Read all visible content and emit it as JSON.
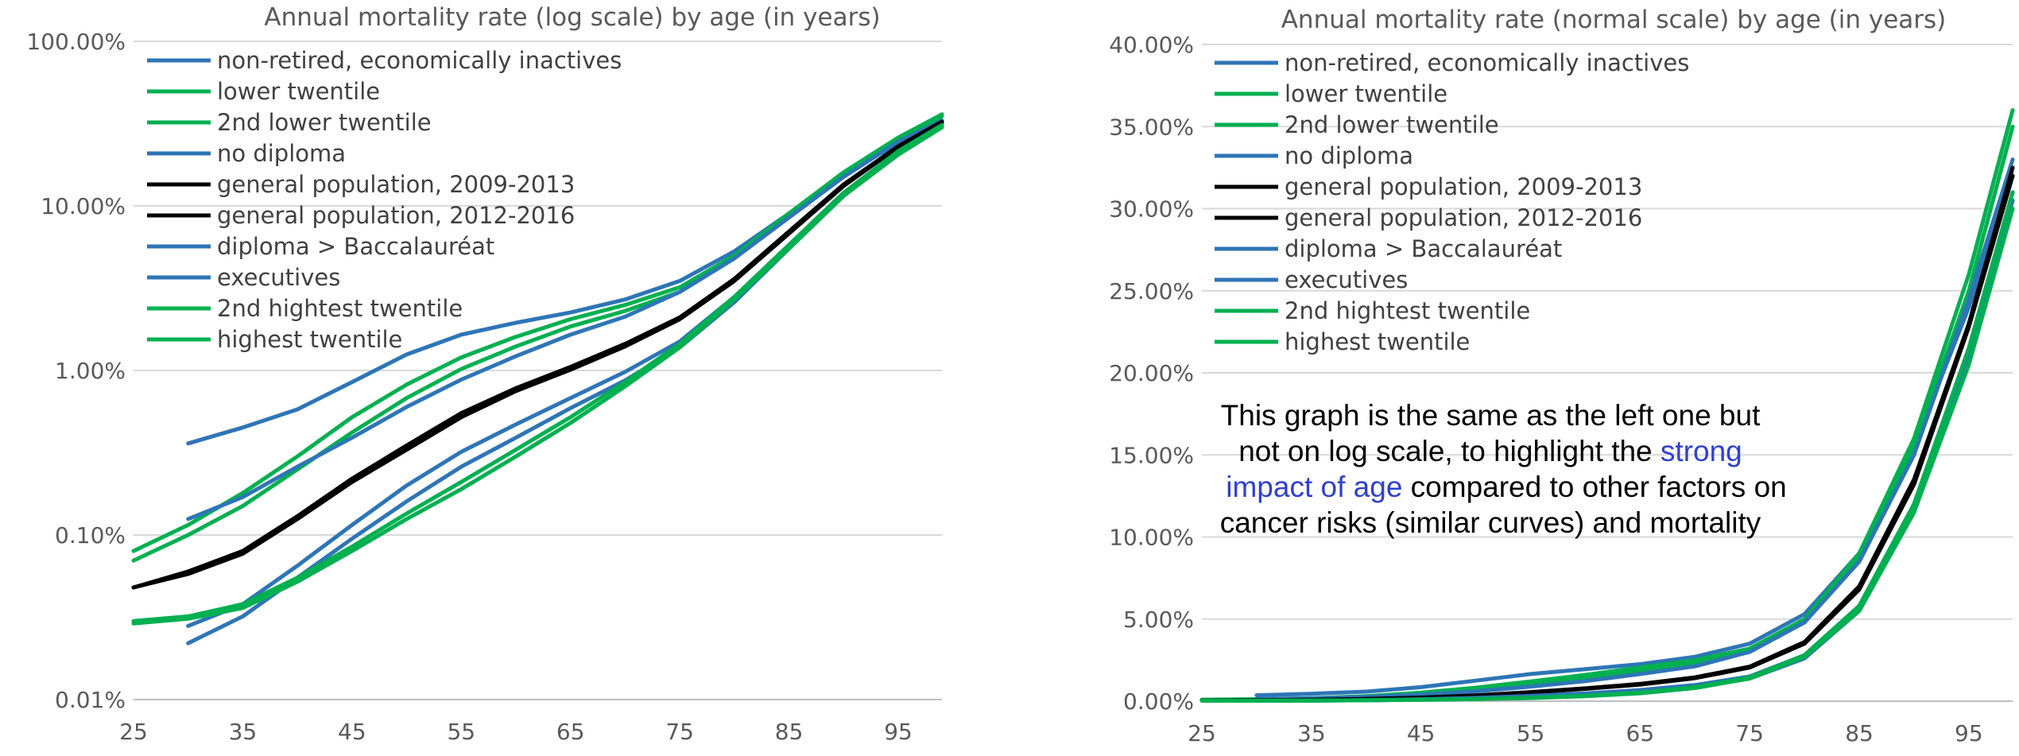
{
  "chart_data": [
    {
      "type": "line",
      "title": "Annual mortality rate (log scale) by age (in years)",
      "yscale": "log",
      "ylim": [
        0.0001,
        1
      ],
      "xlim": [
        25,
        99
      ],
      "xticks": [
        25,
        35,
        45,
        55,
        65,
        75,
        85,
        95
      ],
      "yticks": [
        "0.01%",
        "0.10%",
        "1.00%",
        "10.00%",
        "100.00%"
      ],
      "legend_position": "top-left",
      "grid": true,
      "series": [
        {
          "name": "non-retired, economically inactives",
          "color": "#2e75b6",
          "x": [
            30,
            35,
            40,
            45,
            50,
            55,
            60,
            65,
            70,
            75,
            80,
            85,
            90,
            95,
            99
          ],
          "y": [
            0.0036,
            0.0045,
            0.0058,
            0.0085,
            0.0125,
            0.0165,
            0.0195,
            0.0225,
            0.027,
            0.035,
            0.053,
            0.09,
            0.155,
            0.24,
            0.32
          ]
        },
        {
          "name": "lower twentile",
          "color": "#00b050",
          "x": [
            25,
            30,
            35,
            40,
            45,
            50,
            55,
            60,
            65,
            70,
            75,
            80,
            85,
            90,
            95,
            99
          ],
          "y": [
            0.0008,
            0.00115,
            0.0018,
            0.003,
            0.0052,
            0.0082,
            0.012,
            0.016,
            0.0205,
            0.025,
            0.032,
            0.05,
            0.09,
            0.16,
            0.26,
            0.36
          ]
        },
        {
          "name": "2nd lower twentile",
          "color": "#00b050",
          "x": [
            25,
            30,
            35,
            40,
            45,
            50,
            55,
            60,
            65,
            70,
            75,
            80,
            85,
            90,
            95,
            99
          ],
          "y": [
            0.0007,
            0.001,
            0.0015,
            0.0025,
            0.0042,
            0.0068,
            0.0102,
            0.014,
            0.0185,
            0.023,
            0.03,
            0.048,
            0.087,
            0.155,
            0.25,
            0.35
          ]
        },
        {
          "name": "no diploma",
          "color": "#2e75b6",
          "x": [
            30,
            35,
            40,
            45,
            50,
            55,
            60,
            65,
            70,
            75,
            80,
            85,
            90,
            95,
            99
          ],
          "y": [
            0.00125,
            0.0017,
            0.0026,
            0.0039,
            0.006,
            0.0088,
            0.0122,
            0.0165,
            0.0212,
            0.03,
            0.048,
            0.085,
            0.15,
            0.245,
            0.33
          ]
        },
        {
          "name": "general population, 2009-2013",
          "color": "#000000",
          "x": [
            25,
            30,
            35,
            40,
            45,
            50,
            55,
            60,
            65,
            70,
            75,
            80,
            85,
            90,
            95,
            99
          ],
          "y": [
            0.00048,
            0.0006,
            0.0008,
            0.0013,
            0.0022,
            0.0035,
            0.0055,
            0.0078,
            0.0105,
            0.0145,
            0.021,
            0.036,
            0.07,
            0.135,
            0.23,
            0.325
          ]
        },
        {
          "name": "general population, 2012-2016",
          "color": "#000000",
          "x": [
            25,
            30,
            35,
            40,
            45,
            50,
            55,
            60,
            65,
            70,
            75,
            80,
            85,
            90,
            95,
            99
          ],
          "y": [
            0.00048,
            0.00058,
            0.00077,
            0.00125,
            0.0021,
            0.0033,
            0.0052,
            0.0075,
            0.0101,
            0.014,
            0.0205,
            0.035,
            0.068,
            0.132,
            0.228,
            0.32
          ]
        },
        {
          "name": "diploma > Baccalauréat",
          "color": "#2e75b6",
          "x": [
            30,
            35,
            40,
            45,
            50,
            55,
            60,
            65,
            70,
            75,
            80,
            85,
            90,
            95,
            99
          ],
          "y": [
            0.00028,
            0.00038,
            0.00065,
            0.00115,
            0.002,
            0.0032,
            0.0047,
            0.0068,
            0.0098,
            0.015,
            0.028,
            0.058,
            0.12,
            0.215,
            0.31
          ]
        },
        {
          "name": "executives",
          "color": "#2e75b6",
          "x": [
            30,
            35,
            40,
            45,
            50,
            55,
            60,
            65,
            70,
            75,
            80,
            85,
            90,
            95,
            99
          ],
          "y": [
            0.00022,
            0.00032,
            0.00055,
            0.00095,
            0.0016,
            0.0026,
            0.0039,
            0.0059,
            0.0087,
            0.0138,
            0.026,
            0.055,
            0.115,
            0.21,
            0.305
          ]
        },
        {
          "name": "2nd hightest twentile",
          "color": "#00b050",
          "x": [
            25,
            30,
            35,
            40,
            45,
            50,
            55,
            60,
            65,
            70,
            75,
            80,
            85,
            90,
            95,
            99
          ],
          "y": [
            0.0003,
            0.00032,
            0.00038,
            0.00055,
            0.00085,
            0.00135,
            0.0021,
            0.0033,
            0.0052,
            0.0085,
            0.0145,
            0.028,
            0.058,
            0.12,
            0.215,
            0.31
          ]
        },
        {
          "name": "highest twentile",
          "color": "#00b050",
          "x": [
            25,
            30,
            35,
            40,
            45,
            50,
            55,
            60,
            65,
            70,
            75,
            80,
            85,
            90,
            95,
            99
          ],
          "y": [
            0.00029,
            0.00031,
            0.00036,
            0.00052,
            0.0008,
            0.00125,
            0.0019,
            0.003,
            0.0048,
            0.008,
            0.0138,
            0.027,
            0.055,
            0.115,
            0.205,
            0.3
          ]
        }
      ]
    },
    {
      "type": "line",
      "title": "Annual mortality rate (normal scale) by age (in years)",
      "yscale": "linear",
      "ylim": [
        0,
        0.4
      ],
      "xlim": [
        25,
        99
      ],
      "xticks": [
        25,
        35,
        45,
        55,
        65,
        75,
        85,
        95
      ],
      "yticks": [
        "0.00%",
        "5.00%",
        "10.00%",
        "15.00%",
        "20.00%",
        "25.00%",
        "30.00%",
        "35.00%",
        "40.00%"
      ],
      "legend_position": "top-left",
      "grid": true,
      "annotation": {
        "lines": [
          {
            "text": "This graph is the same as the left one but"
          },
          {
            "text": "not on log scale, to highlight the ",
            "highlight": "strong"
          },
          {
            "highlight": "impact of age",
            "text": " compared to other factors on"
          },
          {
            "text": "cancer risks (similar curves) and mortality"
          }
        ],
        "highlight_color": "#2f3fd0"
      },
      "series_ref": "same as chart 1"
    }
  ]
}
